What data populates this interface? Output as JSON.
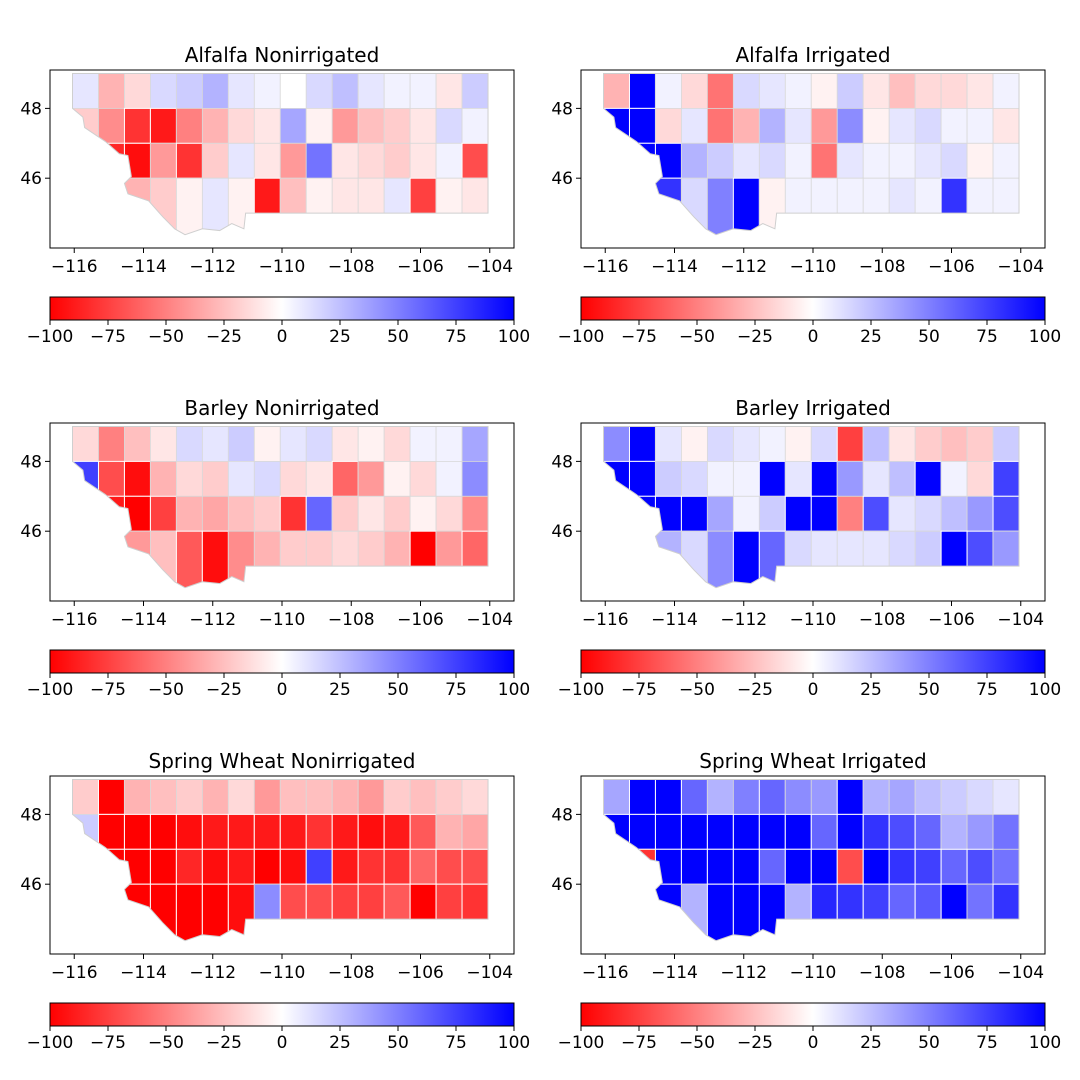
{
  "colorbar": {
    "min": -100,
    "max": 100,
    "ticks": [
      -100,
      -75,
      -50,
      -25,
      0,
      25,
      50,
      75,
      100
    ],
    "tick_labels": [
      "−100",
      "−75",
      "−50",
      "−25",
      "0",
      "25",
      "50",
      "75",
      "100"
    ],
    "colors": {
      "low": "#ff0000",
      "mid": "#ffffff",
      "high": "#0000ff"
    }
  },
  "axes": {
    "x_ticks": [
      -116,
      -114,
      -112,
      -110,
      -108,
      -106,
      -104
    ],
    "x_tick_labels": [
      "−116",
      "−114",
      "−112",
      "−110",
      "−108",
      "−106",
      "−104"
    ],
    "y_ticks": [
      46,
      48
    ],
    "y_tick_labels": [
      "46",
      "48"
    ],
    "xlim": [
      -116.7,
      -103.3
    ],
    "ylim": [
      44.0,
      49.1
    ]
  },
  "chart_data": [
    {
      "type": "choropleth",
      "title": "Alfalfa Nonirrigated",
      "values": [
        10,
        -30,
        -15,
        15,
        20,
        30,
        10,
        5,
        0,
        15,
        25,
        10,
        5,
        5,
        -10,
        20,
        -20,
        -45,
        -80,
        -90,
        -50,
        -30,
        -15,
        -10,
        35,
        -5,
        -40,
        -25,
        -20,
        -10,
        15,
        5,
        -10,
        -85,
        -95,
        -40,
        -80,
        -20,
        10,
        -10,
        -40,
        55,
        -10,
        -15,
        -20,
        -10,
        5,
        -70,
        -30,
        -35,
        -30,
        -20,
        -5,
        10,
        -5,
        -90,
        -25,
        -5,
        -10,
        -10,
        10,
        -75,
        -5,
        -10
      ]
    },
    {
      "type": "choropleth",
      "title": "Alfalfa Irrigated",
      "values": [
        -30,
        100,
        5,
        -15,
        -55,
        15,
        10,
        5,
        -5,
        20,
        -10,
        -25,
        -15,
        -15,
        -10,
        5,
        100,
        100,
        -15,
        10,
        -55,
        -30,
        30,
        10,
        -40,
        45,
        -5,
        10,
        15,
        5,
        5,
        -10,
        100,
        100,
        100,
        30,
        20,
        10,
        15,
        5,
        -55,
        10,
        5,
        5,
        10,
        15,
        -5,
        5,
        60,
        45,
        80,
        15,
        50,
        100,
        -5,
        5,
        5,
        5,
        5,
        10,
        5,
        80,
        5,
        5
      ]
    },
    {
      "type": "choropleth",
      "title": "Barley Nonirrigated",
      "values": [
        -15,
        -50,
        -25,
        -10,
        15,
        10,
        20,
        -5,
        10,
        15,
        -10,
        -5,
        -15,
        5,
        5,
        35,
        75,
        -70,
        -95,
        -30,
        -15,
        -20,
        10,
        15,
        -15,
        -10,
        -60,
        -40,
        -5,
        -15,
        5,
        45,
        -40,
        -90,
        -100,
        -75,
        -30,
        -35,
        -25,
        -20,
        -80,
        60,
        -20,
        -10,
        -20,
        -5,
        -15,
        -45,
        -40,
        -45,
        -40,
        -25,
        -65,
        -95,
        -45,
        -30,
        -20,
        -20,
        -15,
        -20,
        -30,
        -100,
        -40,
        -60
      ]
    },
    {
      "type": "choropleth",
      "title": "Barley Irrigated",
      "values": [
        45,
        100,
        10,
        -5,
        15,
        10,
        5,
        -5,
        15,
        -75,
        25,
        -10,
        -20,
        -25,
        -20,
        20,
        100,
        100,
        20,
        15,
        5,
        5,
        100,
        10,
        100,
        40,
        10,
        25,
        100,
        5,
        -15,
        75,
        100,
        100,
        100,
        100,
        35,
        5,
        20,
        100,
        100,
        -50,
        70,
        10,
        15,
        25,
        40,
        70,
        45,
        55,
        30,
        15,
        45,
        100,
        60,
        15,
        10,
        10,
        10,
        15,
        20,
        100,
        70,
        40
      ]
    },
    {
      "type": "choropleth",
      "title": "Spring Wheat Nonirrigated",
      "values": [
        -20,
        -100,
        -30,
        -25,
        -20,
        -30,
        -15,
        -40,
        -25,
        -25,
        -30,
        -40,
        -20,
        -25,
        -20,
        -15,
        20,
        -100,
        -100,
        -100,
        -95,
        -90,
        -90,
        -90,
        -90,
        -80,
        -90,
        -95,
        -90,
        -65,
        -30,
        -35,
        -100,
        -100,
        -100,
        -100,
        -85,
        -95,
        -90,
        -100,
        -95,
        75,
        -90,
        -80,
        -80,
        -60,
        -70,
        -70,
        -100,
        -100,
        -100,
        -100,
        -100,
        -100,
        -95,
        45,
        -70,
        -70,
        -75,
        -75,
        -65,
        -100,
        -75,
        -80
      ]
    },
    {
      "type": "choropleth",
      "title": "Spring Wheat Irrigated",
      "values": [
        35,
        100,
        100,
        60,
        30,
        50,
        60,
        45,
        40,
        100,
        30,
        35,
        25,
        20,
        15,
        10,
        100,
        100,
        100,
        100,
        100,
        100,
        100,
        100,
        60,
        100,
        80,
        70,
        60,
        30,
        40,
        55,
        100,
        -80,
        100,
        100,
        100,
        100,
        60,
        100,
        100,
        -70,
        100,
        80,
        75,
        60,
        70,
        55,
        100,
        100,
        100,
        30,
        100,
        100,
        100,
        30,
        85,
        80,
        75,
        60,
        65,
        100,
        55,
        80
      ]
    }
  ]
}
